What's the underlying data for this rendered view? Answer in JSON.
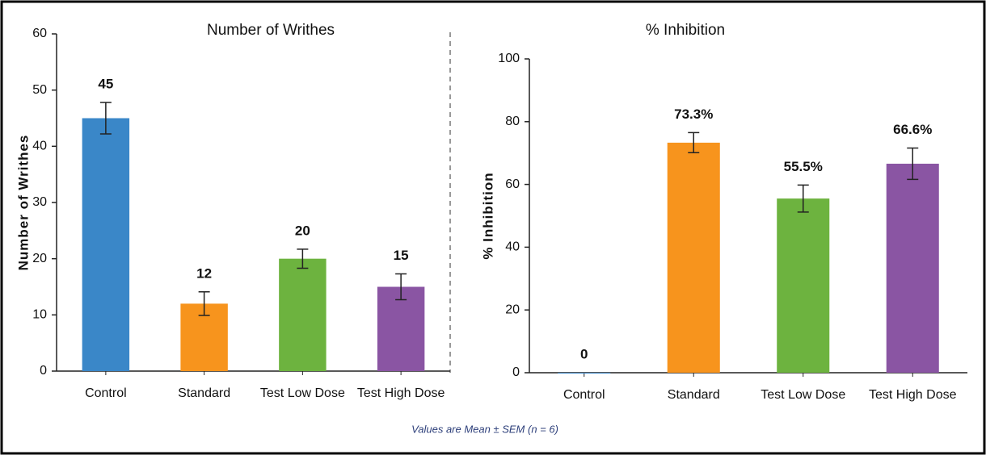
{
  "chart_data": [
    {
      "type": "bar",
      "title": "Number of Writhes",
      "ylabel": "Number of Writhes",
      "categories": [
        "Control",
        "Standard",
        "Test Low Dose",
        "Test High Dose"
      ],
      "values": [
        45,
        12,
        20,
        15
      ],
      "errors": [
        2.8,
        2.1,
        1.7,
        2.3
      ],
      "colors": [
        "#3a87c8",
        "#f7941d",
        "#6db33f",
        "#8a55a3"
      ],
      "ylim": [
        0,
        60
      ],
      "yticks": [
        0,
        10,
        20,
        30,
        40,
        50,
        60
      ]
    },
    {
      "type": "bar",
      "title": "% Inhibition",
      "ylabel": "% Inhibition",
      "categories": [
        "Control",
        "Standard",
        "Test Low Dose",
        "Test High Dose"
      ],
      "values": [
        0,
        73.3,
        55.5,
        66.6
      ],
      "value_labels": [
        "0",
        "73.3%",
        "55.5%",
        "66.6%"
      ],
      "errors": [
        null,
        3.2,
        4.3,
        5.0
      ],
      "colors": [
        "#3a87c8",
        "#f7941d",
        "#6db33f",
        "#8a55a3"
      ],
      "ylim": [
        0,
        100
      ],
      "yticks": [
        0,
        20,
        40,
        60,
        80,
        100
      ]
    }
  ],
  "footnote": "Values are Mean ± SEM (n = 6)"
}
